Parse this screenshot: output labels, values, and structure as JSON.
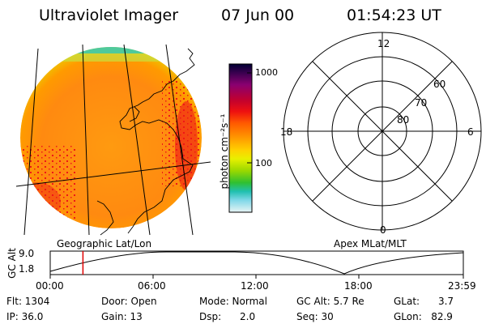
{
  "header": {
    "title": "Ultraviolet Imager",
    "date": "07 Jun 00",
    "time": "01:54:23 UT"
  },
  "colorbar": {
    "unit_label": "photon cm⁻²s⁻¹",
    "tick_labels": [
      "1000",
      "100"
    ],
    "colors": [
      "#000033",
      "#3a0050",
      "#8a0070",
      "#c00030",
      "#ee1010",
      "#ff5a00",
      "#ff9a00",
      "#ffd000",
      "#e8f000",
      "#9ad800",
      "#30c030",
      "#20c0b0",
      "#80d8e8",
      "#e8f4f4"
    ]
  },
  "geo_panel": {
    "caption": "Geographic Lat/Lon",
    "image_colors": {
      "rim": "#40c8a8",
      "main": "#ff9a10",
      "hot": "#ee1818",
      "warm": "#ffc000"
    }
  },
  "polar_panel": {
    "caption": "Apex MLat/MLT",
    "mlt_labels": {
      "top": "12",
      "left": "18",
      "right": "6",
      "bottom": "0"
    },
    "lat_labels": [
      "60",
      "70",
      "80"
    ]
  },
  "altitude_plot": {
    "ylabel": "GC Alt",
    "yticks": [
      "9.0",
      "1.8"
    ],
    "xticks": [
      "00:00",
      "06:00",
      "12:00",
      "18:00",
      "23:59"
    ],
    "marker_time_hours": 1.9,
    "marker_color": "#e00000"
  },
  "info": {
    "flt": "Flt: 1304",
    "ip": "IP: 36.0",
    "door": "Door: Open",
    "gain": "Gain: 13",
    "mode": "Mode: Normal",
    "dsp": "Dsp:      2.0",
    "gcalt": "GC Alt: 5.7 Re",
    "seq": "Seq: 30",
    "glat": "GLat:      3.7",
    "glon": "GLon:   82.9"
  }
}
